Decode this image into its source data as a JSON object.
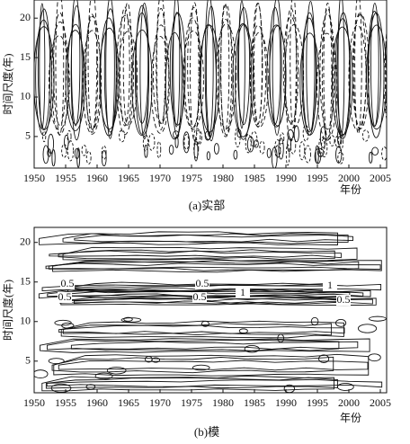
{
  "chart_data": [
    {
      "type": "contour",
      "title": "(a)实部",
      "xlabel": "年份",
      "ylabel": "时间尺度(年)",
      "xlim": [
        1950,
        2006
      ],
      "xticks": [
        1950,
        1955,
        1960,
        1965,
        1970,
        1975,
        1980,
        1985,
        1990,
        1995,
        2000,
        2005
      ],
      "ylim": [
        1,
        22.3
      ],
      "yticks": [
        5,
        10,
        15,
        20
      ]
    },
    {
      "type": "contour",
      "title": "(b)模",
      "xlabel": "年份",
      "ylabel": "时间尺度(年)",
      "xlim": [
        1950,
        2006
      ],
      "xticks": [
        1950,
        1955,
        1960,
        1965,
        1970,
        1975,
        1980,
        1985,
        1990,
        1995,
        2000,
        2005
      ],
      "ylim": [
        1,
        21.9
      ],
      "yticks": [
        5,
        10,
        15,
        20
      ],
      "contour_labels": [
        0.5,
        0.5,
        1,
        1,
        0.5,
        0.5,
        0.5
      ]
    }
  ]
}
